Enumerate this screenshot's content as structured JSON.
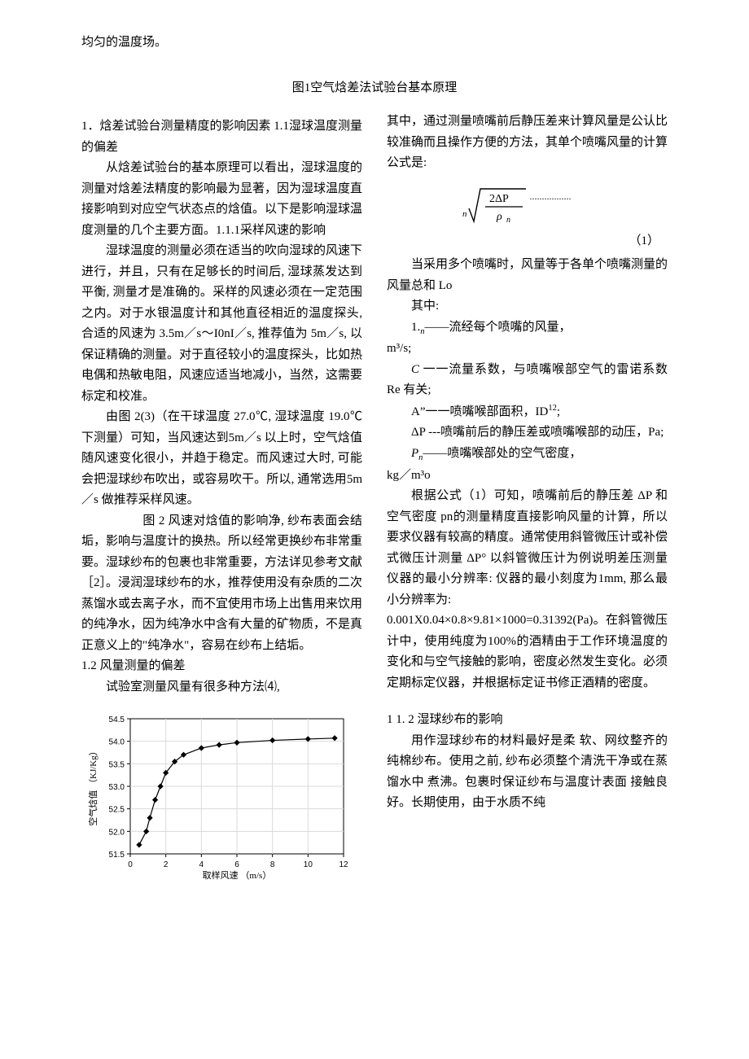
{
  "top_line": "均匀的温度场。",
  "fig1_caption": "图1空气焓差法试验台基本原理",
  "left": {
    "sec1_heading": "1．焓差试验台测量精度的影响因素 1.1湿球温度测量的偏差",
    "p1": "从焓差试验台的基本原理可以看出，湿球温度的测量对焓差法精度的影响最为显著，因为湿球温度直接影响到对应空气状态点的焓值。以下是影响湿球温度测量的几个主要方面。1.1.1采样风速的影响",
    "p2": "湿球温度的测量必须在适当的吹向湿球的风速下进行，并且，只有在足够长的时间后, 湿球蒸发达到平衡, 测量才是准确的。采样的风速必须在一定范围之内。对于水银温度计和其他直径相近的温度探头, 合适的风速为 3.5m／s～I0nI／s, 推荐值为 5m／s, 以保证精确的测量。对于直径较小的温度探头，比如热电偶和热敏电阻，风速应适当地减小，当然，这需要标定和校准。",
    "p3": "由图 2(3)（在干球温度 27.0℃, 湿球温度 19.0℃下测量）可知，当风速达到5m／s 以上时，空气焓值随风速变化很小，并趋于稳定。而风速过大时, 可能会把湿球纱布吹出，或容易吹干。所以, 通常选用5m／s 做推荐采样风速。",
    "fig2_label": "图 2 风速对焓值的影响净, ",
    "p4_rest": "纱布表面会结垢，影响与温度计的换热。所以经常更换纱布非常重要。湿球纱布的包裹也非常重要，方法详见参考文献［2］。浸润湿球纱布的水，推荐使用没有杂质的二次蒸馏水或去离子水，而不宜使用市场上出售用来饮用的纯净水，因为纯净水中含有大量的矿物质，不是真正意义上的\"纯净水\"，容易在纱布上结垢。",
    "sec12": "1.2 风量测量的偏差",
    "p5": "试验室测量风量有很多种方法⑷,"
  },
  "chart": {
    "type": "line",
    "x_label": "取样风速 （m/s）",
    "y_label": "空气焓值 （KJ/Kg）",
    "x_ticks": [
      0,
      2,
      4,
      6,
      8,
      10,
      12
    ],
    "y_ticks": [
      51.5,
      52.0,
      52.5,
      53.0,
      53.5,
      54.0,
      54.5
    ],
    "xlim": [
      0,
      12
    ],
    "ylim": [
      51.5,
      54.5
    ],
    "data_x": [
      0.5,
      0.9,
      1.1,
      1.4,
      1.7,
      2.0,
      2.5,
      3.0,
      4.0,
      5.0,
      6.0,
      8.0,
      10.0,
      11.5
    ],
    "data_y": [
      51.7,
      52.0,
      52.3,
      52.7,
      53.0,
      53.3,
      53.55,
      53.7,
      53.85,
      53.92,
      53.97,
      54.02,
      54.05,
      54.07
    ],
    "grid_color": "#d9d9d9",
    "axis_color": "#000000",
    "line_color": "#000000",
    "marker_fill": "#000000",
    "marker_size": 3.2,
    "line_width": 1.2,
    "bg": "#ffffff",
    "label_fontsize": 11,
    "tick_fontsize": 10
  },
  "right": {
    "p1": "其中，通过测量喷嘴前后静压差来计算风量是公认比较准确而且操作方便的方法，其单个喷嘴风量的计算公式是:",
    "formula_num": "（1）",
    "p2": "当采用多个喷嘴时，风量等于各单个喷嘴测量的风量总和 Lo",
    "p3": "其中:",
    "d1_label": "1.",
    "d1_sub": "n",
    "d1_text": "——流经每个喷嘴的风量，",
    "d1_unit": "m³/s;",
    "d2_pre": "C",
    "d2_text": " 一一流量系数，与喷嘴喉部空气的雷诺系数 Re 有关;",
    "d3_pre": "A”",
    "d3_text": "一一喷嘴喉部面积，ID",
    "d3_sup": "12",
    "d3_end": ";",
    "d4_text": "ΔP ---喷嘴前后的静压差或喷嘴喉部的动压，Pa;",
    "d5_pre": "P",
    "d5_sub": "n",
    "d5_text": "——喷嘴喉部处的空气密度，",
    "d5_unit": "kg／m³o",
    "p4": "根据公式（1）可知，喷嘴前后的静压差 ΔP 和空气密度 pn的测量精度直接影响风量的计算，所以要求仪器有较高的精度。通常使用斜管微压计或补偿式微压计测量 ΔP° 以斜管微压计为例说明差压测量仪器的最小分辨率: 仪器的最小刻度为1mm, 那么最小分辨率为:",
    "calc": "0.001X0.04×0.8×9.81×1000=0.31392(Pa)。",
    "p5_rest": "在斜管微压计中，使用纯度为100%的酒精由于工作环境温度的变化和与空气接触的影响，密度必然发生变化。必须定期标定仪器，并根据标定证书修正酒精的密度。",
    "sec112": "1 1. 2 湿球纱布的影响",
    "p6": "用作湿球纱布的材料最好是柔 软、网纹整齐的纯棉纱布。使用之前, 纱布必须整个清洗干净或在蒸馏水中 煮沸。包裹时保证纱布与温度计表面 接触良好。长期使用，由于水质不纯"
  },
  "formula_svg": {
    "sqrt_color": "#000000",
    "stroke_width": 1.4,
    "text": {
      "two": "2",
      "dp": "ΔP",
      "rho": "ρ",
      "n1": "n",
      "n2": "n"
    },
    "dots": "·················"
  }
}
